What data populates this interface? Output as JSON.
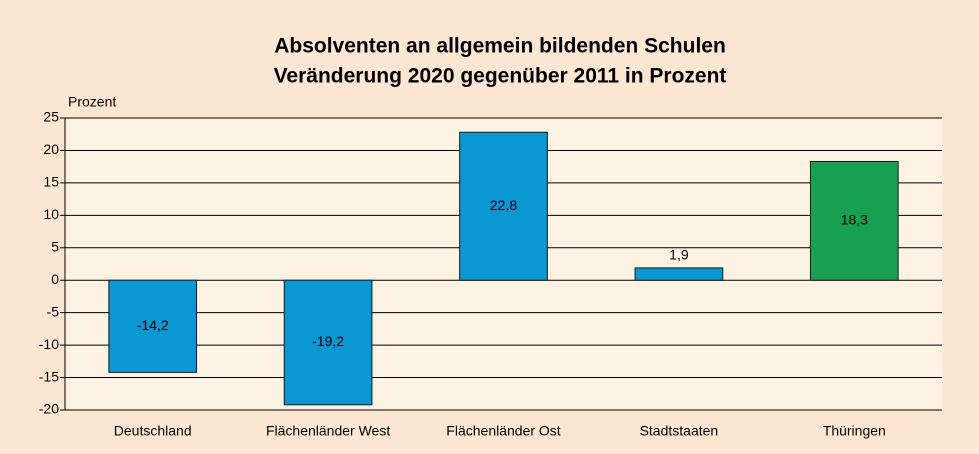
{
  "chart_data": {
    "type": "bar",
    "title": "Absolventen an allgemein bildenden Schulen",
    "subtitle": "Veränderung 2020 gegenüber 2011 in Prozent",
    "y_label": "Prozent",
    "categories": [
      "Deutschland",
      "Flächenländer West",
      "Flächenländer Ost",
      "Stadtstaaten",
      "Thüringen"
    ],
    "values": [
      -14.2,
      -19.2,
      22.8,
      1.9,
      18.3
    ],
    "value_labels": [
      "-14,2",
      "-19,2",
      "22,8",
      "1,9",
      "18,3"
    ],
    "colors": [
      "#0b97d4",
      "#0b97d4",
      "#0b97d4",
      "#0b97d4",
      "#16a050"
    ],
    "ylim": [
      -20,
      25
    ],
    "yticks": [
      -20,
      -15,
      -10,
      -5,
      0,
      5,
      10,
      15,
      20,
      25
    ],
    "grid": true
  }
}
